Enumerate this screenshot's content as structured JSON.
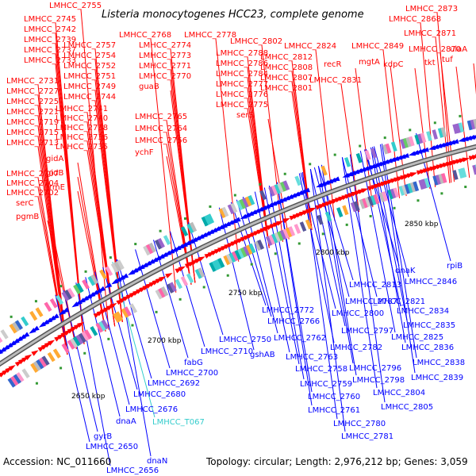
{
  "title": "Listeria monocytogenes HCC23, complete genome",
  "footer": {
    "accession": "Accession: NC_011660",
    "summary": "Topology: circular; Length: 2,976,212 bp; Genes: 3,059"
  },
  "colors": {
    "forward": "#ff0000",
    "reverse": "#0000ff",
    "rna": "#33cccc",
    "backbone": "#888888",
    "text": "#000000"
  },
  "kbp_ticks": [
    "2650 kbp",
    "2700 kbp",
    "2750 kbp",
    "2800 kbp",
    "2850 kbp"
  ],
  "red_labels": [
    "LMHCC_2755",
    "LMHCC_2745",
    "LMHCC_2742",
    "LMHCC_2739",
    "LMHCC_2737",
    "LMHCC_2733",
    "LMHCC_2731",
    "LMHCC_2727",
    "LMHCC_2725",
    "LMHCC_2721",
    "LMHCC_2719",
    "LMHCC_2715",
    "LMHCC_2713",
    "LMHCC_2707",
    "LMHCC_2704",
    "LMHCC_2702",
    "serC",
    "pgmB",
    "LMHCC_2768",
    "LMHCC_2757",
    "LMHCC_2754",
    "LMHCC_2752",
    "LMHCC_2751",
    "LMHCC_2749",
    "LMHCC_2744",
    "LMHCC_2741",
    "LMHCC_2740",
    "LMHCC_2738",
    "LMHCC_2736",
    "LMHCC_2735",
    "gidA",
    "gidB",
    "trmE",
    "LMHCC_2778",
    "LMHCC_2774",
    "LMHCC_2773",
    "LMHCC_2771",
    "LMHCC_2770",
    "guaB",
    "LMHCC_2765",
    "LMHCC_2764",
    "LMHCC_2756",
    "ychF",
    "LMHCC_2788",
    "LMHCC_2786",
    "LMHCC_2784",
    "LMHCC_2777",
    "LMHCC_2776",
    "LMHCC_2775",
    "LMHCC_2802",
    "LMHCC_2812",
    "LMHCC_2808",
    "LMHCC_2807",
    "LMHCC_2801",
    "serS",
    "LMHCC_2824",
    "recR",
    "LMHCC_2831",
    "LMHCC_2849",
    "mgtA",
    "kdpC",
    "LMHCC_2873",
    "LMHCC_2868",
    "LMHCC_2871",
    "LMHCC_2870",
    "ulaA",
    "tkt",
    "tuf"
  ],
  "blue_labels": [
    "rpiB",
    "LMHCC_2846",
    "dnaK",
    "LMHCC_2813",
    "LMHCC_2821",
    "LMHCC_2834",
    "LMHCC_2835",
    "LMHCC_2825",
    "LMHCC_2836",
    "LMHCC_2838",
    "LMHCC_2839",
    "LMHCC_2787",
    "LMHCC_2800",
    "LMHCC_2797",
    "LMHCC_2782",
    "LMHCC_2796",
    "LMHCC_2798",
    "LMHCC_2804",
    "LMHCC_2805",
    "LMHCC_2772",
    "LMHCC_2766",
    "LMHCC_2762",
    "LMHCC_2763",
    "LMHCC_2758",
    "LMHCC_2759",
    "LMHCC_2760",
    "LMHCC_2761",
    "LMHCC_2780",
    "LMHCC_2781",
    "LMHCC_2750",
    "gshAB",
    "LMHCC_2710",
    "fabG",
    "LMHCC_2700",
    "LMHCC_2692",
    "LMHCC_2680",
    "LMHCC_2676",
    "dnaA",
    "gyrB",
    "LMHCC_2650",
    "dnaN",
    "LMHCC_2656"
  ],
  "rna_labels": [
    "LMHCC_T067"
  ]
}
